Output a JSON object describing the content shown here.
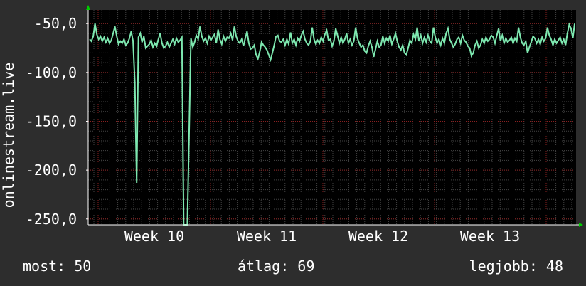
{
  "chart_data": {
    "type": "line",
    "ylabel": "onlinestream.live",
    "yticks": [
      -50,
      -100,
      -150,
      -200,
      -250
    ],
    "ytick_labels": [
      "-50,0",
      "-100,0",
      "-150,0",
      "-200,0",
      "-250,0"
    ],
    "ylim": [
      -256,
      -36
    ],
    "xticks": [
      "Week 10",
      "Week 11",
      "Week 12",
      "Week 13"
    ],
    "grid": true,
    "series_color": "#7ee8b0",
    "background_color": "#000000",
    "grid_color": "#8a2020",
    "frame_color": "#2d2d2d",
    "values": [
      -66,
      -68,
      -63,
      -50,
      -61,
      -66,
      -63,
      -68,
      -64,
      -69,
      -65,
      -70,
      -67,
      -60,
      -53,
      -63,
      -71,
      -68,
      -70,
      -66,
      -72,
      -70,
      -65,
      -58,
      -68,
      -110,
      -213,
      -64,
      -60,
      -69,
      -63,
      -75,
      -73,
      -71,
      -67,
      -74,
      -70,
      -73,
      -66,
      -60,
      -70,
      -75,
      -73,
      -69,
      -74,
      -70,
      -66,
      -71,
      -65,
      -69,
      -67,
      -64,
      -256,
      -256,
      -256,
      -160,
      -65,
      -74,
      -69,
      -62,
      -66,
      -53,
      -63,
      -68,
      -65,
      -70,
      -63,
      -67,
      -64,
      -61,
      -70,
      -56,
      -66,
      -71,
      -63,
      -68,
      -64,
      -65,
      -60,
      -67,
      -53,
      -63,
      -68,
      -70,
      -66,
      -73,
      -65,
      -58,
      -70,
      -76,
      -75,
      -72,
      -82,
      -86,
      -79,
      -69,
      -72,
      -74,
      -77,
      -82,
      -87,
      -80,
      -72,
      -63,
      -62,
      -68,
      -69,
      -66,
      -72,
      -66,
      -71,
      -59,
      -70,
      -66,
      -72,
      -65,
      -68,
      -62,
      -58,
      -66,
      -70,
      -72,
      -68,
      -54,
      -66,
      -71,
      -67,
      -70,
      -64,
      -68,
      -61,
      -57,
      -67,
      -66,
      -73,
      -68,
      -55,
      -62,
      -70,
      -64,
      -70,
      -66,
      -60,
      -70,
      -66,
      -72,
      -68,
      -54,
      -65,
      -70,
      -74,
      -72,
      -78,
      -80,
      -73,
      -68,
      -74,
      -84,
      -76,
      -68,
      -74,
      -72,
      -63,
      -70,
      -65,
      -68,
      -62,
      -71,
      -66,
      -60,
      -68,
      -74,
      -77,
      -72,
      -80,
      -82,
      -75,
      -67,
      -70,
      -61,
      -66,
      -54,
      -68,
      -62,
      -70,
      -64,
      -69,
      -62,
      -68,
      -70,
      -54,
      -64,
      -70,
      -66,
      -72,
      -65,
      -70,
      -60,
      -55,
      -66,
      -70,
      -74,
      -71,
      -66,
      -64,
      -70,
      -62,
      -67,
      -69,
      -73,
      -75,
      -83,
      -80,
      -72,
      -68,
      -75,
      -72,
      -66,
      -70,
      -64,
      -68,
      -66,
      -62,
      -64,
      -70,
      -62,
      -55,
      -68,
      -62,
      -70,
      -65,
      -69,
      -67,
      -64,
      -70,
      -65,
      -68,
      -54,
      -64,
      -70,
      -72,
      -68,
      -80,
      -74,
      -69,
      -63,
      -65,
      -70,
      -66,
      -71,
      -64,
      -68,
      -65,
      -54,
      -62,
      -66,
      -72,
      -66,
      -70,
      -67,
      -64,
      -70,
      -66,
      -72,
      -60,
      -51,
      -55,
      -65,
      -50
    ]
  },
  "footer": {
    "current": "most: 50",
    "average": "átlag: 69",
    "best": "legjobb: 48"
  }
}
